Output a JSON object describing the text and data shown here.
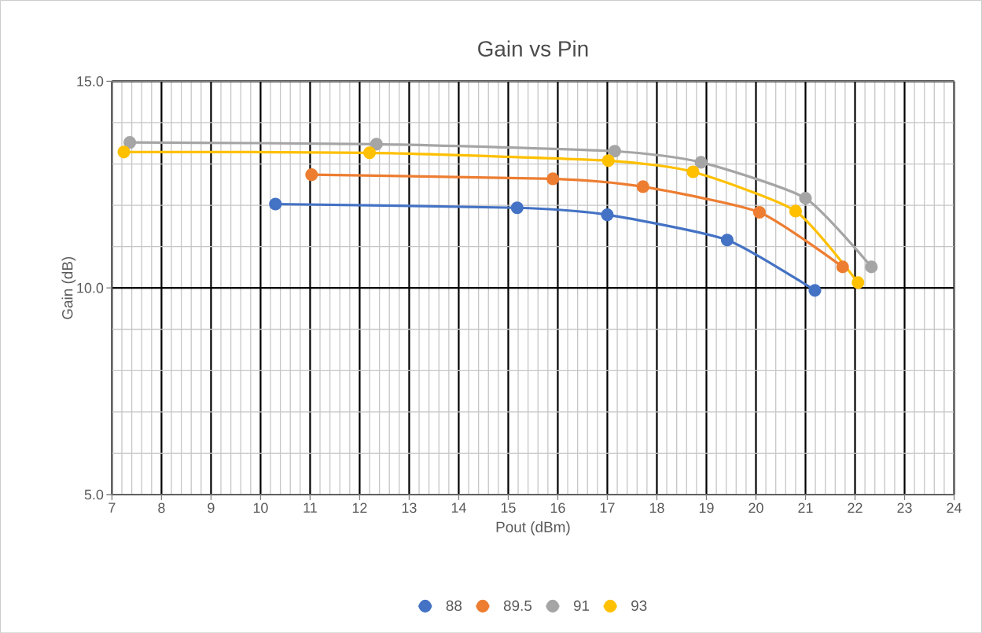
{
  "chart_data": {
    "type": "line",
    "title": "Gain vs Pin",
    "xlabel": "Pout (dBm)",
    "ylabel": "Gain (dB)",
    "xlim": [
      7,
      24
    ],
    "xticks": [
      7,
      8,
      9,
      10,
      11,
      12,
      13,
      14,
      15,
      16,
      17,
      18,
      19,
      20,
      21,
      22,
      23,
      24
    ],
    "ylim": [
      5,
      15
    ],
    "yticks": [
      {
        "value": 5,
        "label": "5.0"
      },
      {
        "value": 10,
        "label": "10.0"
      },
      {
        "value": 15,
        "label": "15.0"
      }
    ],
    "grid": true,
    "legend": "bottom",
    "marker": "circle",
    "line_style": "solid",
    "series": [
      {
        "name": "88",
        "color": "#4472c4",
        "x": [
          10.3,
          15.18,
          17.0,
          19.42,
          21.19
        ],
        "values": [
          12.03,
          11.94,
          11.77,
          11.16,
          9.94
        ]
      },
      {
        "name": "89.5",
        "color": "#ed7d31",
        "x": [
          11.03,
          15.9,
          17.72,
          20.07,
          21.75
        ],
        "values": [
          12.74,
          12.64,
          12.45,
          11.83,
          10.51
        ]
      },
      {
        "name": "91",
        "color": "#a5a5a5",
        "x": [
          7.36,
          12.34,
          17.15,
          18.89,
          21.0,
          22.33
        ],
        "values": [
          13.52,
          13.48,
          13.31,
          13.04,
          12.17,
          10.51
        ]
      },
      {
        "name": "93",
        "color": "#ffc000",
        "x": [
          7.24,
          12.2,
          17.02,
          18.73,
          20.8,
          22.06
        ],
        "values": [
          13.29,
          13.27,
          13.08,
          12.81,
          11.86,
          10.13
        ]
      }
    ]
  }
}
